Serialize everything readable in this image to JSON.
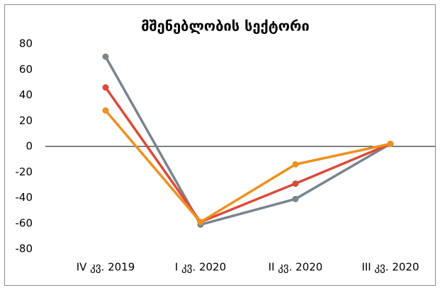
{
  "chart_data": {
    "type": "line",
    "title": "მშენებლობის სექტორი",
    "categories": [
      "IV კვ. 2019",
      "I კვ. 2020",
      "II კვ. 2020",
      "III კვ. 2020"
    ],
    "series": [
      {
        "color": "#78858f",
        "values": [
          70,
          -61,
          -41,
          2
        ]
      },
      {
        "color": "#dc4a38",
        "values": [
          46,
          -59,
          -29,
          2
        ]
      },
      {
        "color": "#f0901e",
        "values": [
          28,
          -59,
          -14,
          2
        ]
      }
    ],
    "ylim": [
      -80,
      80
    ],
    "yticks": [
      -80,
      -60,
      -40,
      -20,
      0,
      20,
      40,
      60,
      80
    ],
    "grid": false
  }
}
